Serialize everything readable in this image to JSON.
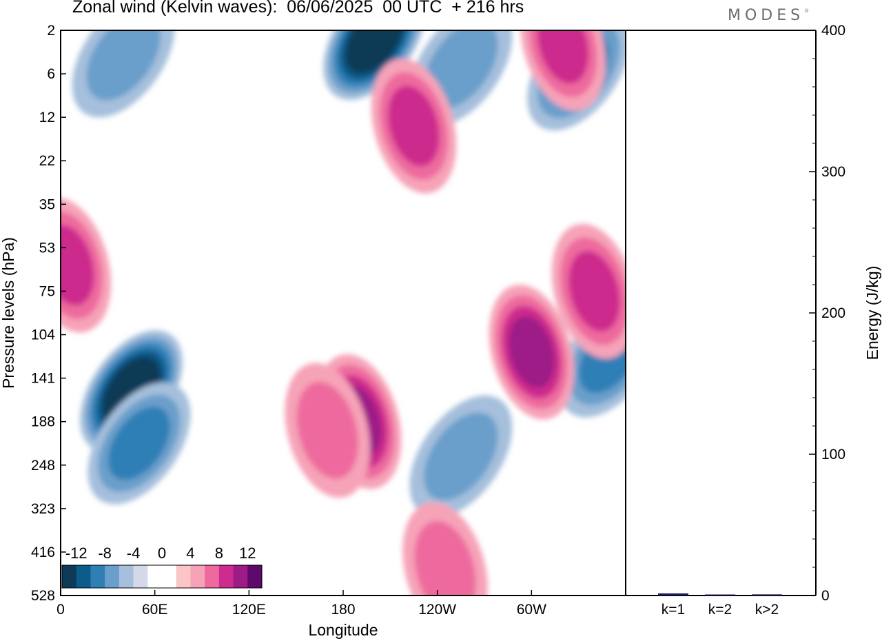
{
  "title": "Zonal wind (Kelvin waves):  06/06/2025  00 UTC  + 216 hrs",
  "logo": "MODES",
  "logo_mark": "®",
  "colors": {
    "neg": [
      "#0d3b57",
      "#0b5b8b",
      "#2f7fb5",
      "#6a9fcb",
      "#a5bfdc",
      "#d4d9ea"
    ],
    "zero": "#ffffff",
    "pos": [
      "#f9c5c5",
      "#f6a3b8",
      "#ee6a9e",
      "#cd2b8d",
      "#9e1a87",
      "#5e0a6c"
    ],
    "bars": "#1c1c5e"
  },
  "chart_data": [
    {
      "type": "heatmap",
      "title": "Zonal wind (Kelvin waves):  06/06/2025  00 UTC  + 216 hrs",
      "xlabel": "Longitude",
      "ylabel": "Pressure levels (hPa)",
      "x_ticks": [
        "0",
        "60E",
        "120E",
        "180",
        "120W",
        "60W"
      ],
      "x_tick_values": [
        0,
        60,
        120,
        180,
        240,
        300
      ],
      "xlim": [
        0,
        360
      ],
      "y_ticks": [
        "2",
        "6",
        "12",
        "22",
        "35",
        "53",
        "75",
        "104",
        "141",
        "188",
        "248",
        "323",
        "416",
        "528"
      ],
      "y_scale": "categorical-levels (top to bottom)",
      "colorbar": {
        "labels": [
          "-12",
          "-8",
          "-4",
          "0",
          "4",
          "8",
          "12"
        ],
        "label_values": [
          -12,
          -8,
          -4,
          0,
          4,
          8,
          12
        ],
        "bins": 14
      },
      "features": [
        {
          "lon": 40,
          "level_index": 0.6,
          "value": -5
        },
        {
          "lon": 45,
          "level_index": 8.3,
          "value": -12
        },
        {
          "lon": 50,
          "level_index": 9.5,
          "value": -6
        },
        {
          "lon": 200,
          "level_index": 0.2,
          "value": -13
        },
        {
          "lon": 255,
          "level_index": 0.8,
          "value": -4
        },
        {
          "lon": 330,
          "level_index": 0.9,
          "value": -7
        },
        {
          "lon": 350,
          "level_index": 7.5,
          "value": -7
        },
        {
          "lon": 255,
          "level_index": 9.8,
          "value": -5
        },
        {
          "lon": 190,
          "level_index": 9.0,
          "value": 8
        },
        {
          "lon": 170,
          "level_index": 9.2,
          "value": 5
        },
        {
          "lon": 300,
          "level_index": 7.4,
          "value": 9
        },
        {
          "lon": 340,
          "level_index": 6.0,
          "value": 6
        },
        {
          "lon": 225,
          "level_index": 2.2,
          "value": 6
        },
        {
          "lon": 5,
          "level_index": 5.4,
          "value": 6
        },
        {
          "lon": 320,
          "level_index": 0.3,
          "value": 7
        },
        {
          "lon": 245,
          "level_index": 12.4,
          "value": 4
        }
      ]
    },
    {
      "type": "bar",
      "ylabel": "Energy (J/kg)",
      "categories": [
        "k=1",
        "k=2",
        "k>2"
      ],
      "values": [
        1.5,
        0.5,
        0.8
      ],
      "ylim": [
        0,
        400
      ],
      "y_ticks": [
        "0",
        "100",
        "200",
        "300",
        "400"
      ],
      "y_tick_values": [
        0,
        100,
        200,
        300,
        400
      ]
    }
  ]
}
